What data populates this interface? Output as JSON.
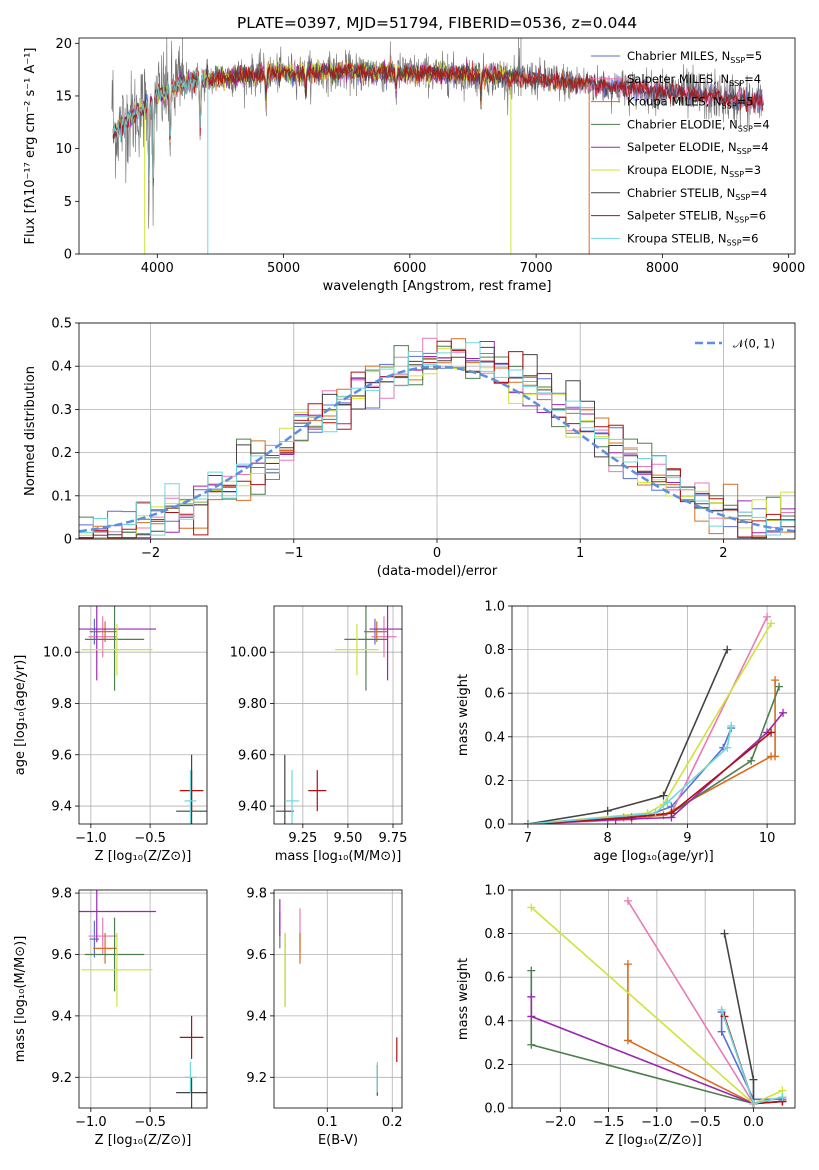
{
  "title": "PLATE=0397, MJD=51794, FIBERID=0536, z=0.044",
  "colors": {
    "Chabrier MILES": "#5a6fd6",
    "Salpeter MILES": "#e87ab8",
    "Kroupa MILES": "#d96c1f",
    "Chabrier ELODIE": "#4e7f4e",
    "Salpeter ELODIE": "#9b27b0",
    "Kroupa ELODIE": "#cfe33a",
    "Chabrier STELIB": "#444444",
    "Salpeter STELIB": "#b01010",
    "Kroupa STELIB": "#6ed7dc",
    "data": "#707070",
    "normal": "#5b8fe0"
  },
  "legend1": [
    {
      "key": "Chabrier MILES",
      "label": "Chabrier MILES, N",
      "sub": "SSP",
      "tail": "=5"
    },
    {
      "key": "Salpeter MILES",
      "label": "Salpeter MILES, N",
      "sub": "SSP",
      "tail": "=4"
    },
    {
      "key": "Kroupa MILES",
      "label": "Kroupa MILES, N",
      "sub": "SSP",
      "tail": "=5"
    },
    {
      "key": "Chabrier ELODIE",
      "label": "Chabrier ELODIE, N",
      "sub": "SSP",
      "tail": "=4"
    },
    {
      "key": "Salpeter ELODIE",
      "label": "Salpeter ELODIE, N",
      "sub": "SSP",
      "tail": "=4"
    },
    {
      "key": "Kroupa ELODIE",
      "label": "Kroupa ELODIE, N",
      "sub": "SSP",
      "tail": "=3"
    },
    {
      "key": "Chabrier STELIB",
      "label": "Chabrier STELIB, N",
      "sub": "SSP",
      "tail": "=4"
    },
    {
      "key": "Salpeter STELIB",
      "label": "Salpeter STELIB, N",
      "sub": "SSP",
      "tail": "=6"
    },
    {
      "key": "Kroupa STELIB",
      "label": "Kroupa STELIB, N",
      "sub": "SSP",
      "tail": "=6"
    }
  ],
  "legend2": {
    "label": "𝒩(0, 1)"
  },
  "chart_data": [
    {
      "id": "spectrum",
      "type": "line",
      "xlabel": "wavelength [Angstrom, rest frame]",
      "ylabel": "Flux [fλ10⁻¹⁷ erg cm⁻² s⁻¹ A⁻¹]",
      "xlim": [
        3380,
        9050
      ],
      "ylim": [
        0,
        20.5
      ],
      "xticks": [
        4000,
        5000,
        6000,
        7000,
        8000,
        9000
      ],
      "yticks": [
        0,
        5,
        10,
        15,
        20
      ],
      "continuum": {
        "x": [
          3650,
          3800,
          3900,
          4000,
          4200,
          4500,
          5000,
          5500,
          6000,
          6500,
          7000,
          7500,
          8000,
          8500,
          8800
        ],
        "y": [
          11.5,
          13.0,
          14.0,
          15.0,
          16.2,
          16.8,
          17.2,
          17.3,
          17.2,
          17.0,
          16.6,
          16.0,
          15.4,
          14.8,
          14.4
        ]
      },
      "absorption_features": [
        {
          "x": 3933,
          "y": 6.0
        },
        {
          "x": 3968,
          "y": 4.5
        },
        {
          "x": 4102,
          "y": 9.5
        },
        {
          "x": 4340,
          "y": 11.0
        },
        {
          "x": 4861,
          "y": 14.0
        },
        {
          "x": 5175,
          "y": 14.8
        },
        {
          "x": 5890,
          "y": 15.0
        },
        {
          "x": 6563,
          "y": 14.5
        }
      ],
      "model_drops": [
        {
          "series": "Kroupa ELODIE",
          "x": 3900
        },
        {
          "series": "Kroupa STELIB",
          "x": 4400
        },
        {
          "series": "Kroupa ELODIE",
          "x": 6800
        },
        {
          "series": "Kroupa MILES",
          "x": 7420
        }
      ],
      "model_ends": {
        "Chabrier MILES": 8800,
        "Salpeter MILES": 8800,
        "Chabrier ELODIE": 6800,
        "Salpeter ELODIE": 6800,
        "Chabrier STELIB": 8800,
        "Salpeter STELIB": 8800
      }
    },
    {
      "id": "residuals",
      "type": "histogram",
      "xlabel": "(data-model)/error",
      "ylabel": "Normed distribution",
      "xlim": [
        -2.5,
        2.5
      ],
      "ylim": [
        0,
        0.5
      ],
      "xticks": [
        -2,
        -1,
        0,
        1,
        2
      ],
      "yticks": [
        0.0,
        0.1,
        0.2,
        0.3,
        0.4,
        0.5
      ],
      "bin_width": 0.1,
      "normal": {
        "mu": 0,
        "sigma": 1
      }
    },
    {
      "id": "Z_age",
      "type": "scatter",
      "xlabel": "Z [log₁₀(Z/Z⊙)]",
      "ylabel": "age  [log₁₀(age/yr)]",
      "xlim": [
        -1.1,
        -0.02
      ],
      "ylim": [
        9.33,
        10.18
      ],
      "xticks": [
        -1.0,
        -0.5
      ],
      "yticks": [
        9.4,
        9.6,
        9.8,
        10.0
      ],
      "points": [
        {
          "s": "Chabrier MILES",
          "x": -0.97,
          "y": 10.08,
          "xe": 0.04,
          "ye": 0.05
        },
        {
          "s": "Salpeter MILES",
          "x": -0.9,
          "y": 10.06,
          "xe": 0.12,
          "ye": 0.08
        },
        {
          "s": "Kroupa MILES",
          "x": -0.88,
          "y": 10.08,
          "xe": 0.1,
          "ye": 0.04
        },
        {
          "s": "Chabrier ELODIE",
          "x": -0.8,
          "y": 10.05,
          "xe": 0.25,
          "ye": 0.2
        },
        {
          "s": "Salpeter ELODIE",
          "x": -0.95,
          "y": 10.09,
          "xe": 0.5,
          "ye": 0.2
        },
        {
          "s": "Kroupa ELODIE",
          "x": -0.78,
          "y": 10.01,
          "xe": 0.3,
          "ye": 0.1
        },
        {
          "s": "Chabrier STELIB",
          "x": -0.15,
          "y": 9.38,
          "xe": 0.13,
          "ye": 0.22
        },
        {
          "s": "Salpeter STELIB",
          "x": -0.15,
          "y": 9.46,
          "xe": 0.1,
          "ye": 0.08
        },
        {
          "s": "Kroupa STELIB",
          "x": -0.16,
          "y": 9.42,
          "xe": 0.05,
          "ye": 0.12
        }
      ]
    },
    {
      "id": "mass_age",
      "type": "scatter",
      "xlabel": "mass [log₁₀(M/M⊙)]",
      "ylabel": "",
      "xlim": [
        9.09,
        9.8
      ],
      "ylim": [
        9.33,
        10.18
      ],
      "xticks": [
        9.25,
        9.5,
        9.75
      ],
      "yticks": [
        9.4,
        9.6,
        9.8,
        10.0
      ],
      "points": [
        {
          "s": "Chabrier MILES",
          "x": 9.65,
          "y": 10.08,
          "xe": 0.06,
          "ye": 0.05
        },
        {
          "s": "Salpeter MILES",
          "x": 9.7,
          "y": 10.06,
          "xe": 0.07,
          "ye": 0.08
        },
        {
          "s": "Kroupa MILES",
          "x": 9.66,
          "y": 10.08,
          "xe": 0.06,
          "ye": 0.04
        },
        {
          "s": "Chabrier ELODIE",
          "x": 9.6,
          "y": 10.05,
          "xe": 0.12,
          "ye": 0.2
        },
        {
          "s": "Salpeter ELODIE",
          "x": 9.72,
          "y": 10.09,
          "xe": 0.1,
          "ye": 0.2
        },
        {
          "s": "Kroupa ELODIE",
          "x": 9.55,
          "y": 10.01,
          "xe": 0.12,
          "ye": 0.1
        },
        {
          "s": "Chabrier STELIB",
          "x": 9.15,
          "y": 9.38,
          "xe": 0.05,
          "ye": 0.22
        },
        {
          "s": "Salpeter STELIB",
          "x": 9.33,
          "y": 9.46,
          "xe": 0.05,
          "ye": 0.08
        },
        {
          "s": "Kroupa STELIB",
          "x": 9.19,
          "y": 9.42,
          "xe": 0.04,
          "ye": 0.12
        }
      ]
    },
    {
      "id": "age_weight",
      "type": "line",
      "xlabel": "age  [log₁₀(age/yr)]",
      "ylabel": "mass weight",
      "xlim": [
        6.8,
        10.35
      ],
      "ylim": [
        0,
        1.0
      ],
      "xticks": [
        7,
        8,
        9,
        10
      ],
      "yticks": [
        0.0,
        0.2,
        0.4,
        0.6,
        0.8,
        1.0
      ],
      "series": [
        {
          "s": "Chabrier MILES",
          "x": [
            7.0,
            8.5,
            8.8,
            9.45,
            9.55
          ],
          "y": [
            0.0,
            0.04,
            0.08,
            0.35,
            0.44
          ]
        },
        {
          "s": "Salpeter MILES",
          "x": [
            7.0,
            8.3,
            8.8,
            10.0
          ],
          "y": [
            0.0,
            0.02,
            0.05,
            0.95
          ]
        },
        {
          "s": "Kroupa MILES",
          "x": [
            7.0,
            8.2,
            8.7,
            10.05,
            10.1,
            10.1
          ],
          "y": [
            0.0,
            0.03,
            0.04,
            0.31,
            0.31,
            0.66
          ]
        },
        {
          "s": "Chabrier ELODIE",
          "x": [
            7.0,
            8.0,
            8.8,
            9.8,
            10.15
          ],
          "y": [
            0.0,
            0.02,
            0.05,
            0.29,
            0.63
          ]
        },
        {
          "s": "Salpeter ELODIE",
          "x": [
            7.0,
            8.1,
            8.8,
            10.0,
            10.2
          ],
          "y": [
            0.0,
            0.02,
            0.03,
            0.42,
            0.51
          ]
        },
        {
          "s": "Kroupa ELODIE",
          "x": [
            7.0,
            8.5,
            8.7,
            10.05
          ],
          "y": [
            0.0,
            0.05,
            0.09,
            0.92
          ]
        },
        {
          "s": "Chabrier STELIB",
          "x": [
            7.0,
            8.0,
            8.7,
            9.5
          ],
          "y": [
            0.0,
            0.06,
            0.13,
            0.8
          ]
        },
        {
          "s": "Salpeter STELIB",
          "x": [
            7.0,
            8.3,
            8.8,
            10.05
          ],
          "y": [
            0.0,
            0.03,
            0.05,
            0.42
          ]
        },
        {
          "s": "Kroupa STELIB",
          "x": [
            7.0,
            8.6,
            8.75,
            9.5,
            9.55
          ],
          "y": [
            0.0,
            0.05,
            0.1,
            0.35,
            0.45
          ]
        }
      ]
    },
    {
      "id": "Z_mass",
      "type": "scatter",
      "xlabel": "Z [log₁₀(Z/Z⊙)]",
      "ylabel": "mass [log₁₀(M/M⊙)]",
      "xlim": [
        -1.1,
        -0.02
      ],
      "ylim": [
        9.1,
        9.81
      ],
      "xticks": [
        -1.0,
        -0.5
      ],
      "yticks": [
        9.2,
        9.4,
        9.6,
        9.8
      ],
      "points": [
        {
          "s": "Chabrier MILES",
          "x": -0.97,
          "y": 9.65,
          "xe": 0.04,
          "ye": 0.06
        },
        {
          "s": "Salpeter MILES",
          "x": -0.9,
          "y": 9.66,
          "xe": 0.12,
          "ye": 0.06
        },
        {
          "s": "Kroupa MILES",
          "x": -0.88,
          "y": 9.62,
          "xe": 0.1,
          "ye": 0.05
        },
        {
          "s": "Chabrier ELODIE",
          "x": -0.8,
          "y": 9.6,
          "xe": 0.25,
          "ye": 0.12
        },
        {
          "s": "Salpeter ELODIE",
          "x": -0.95,
          "y": 9.74,
          "xe": 0.5,
          "ye": 0.1
        },
        {
          "s": "Kroupa ELODIE",
          "x": -0.78,
          "y": 9.55,
          "xe": 0.3,
          "ye": 0.12
        },
        {
          "s": "Chabrier STELIB",
          "x": -0.15,
          "y": 9.15,
          "xe": 0.13,
          "ye": 0.05
        },
        {
          "s": "Salpeter STELIB",
          "x": -0.15,
          "y": 9.33,
          "xe": 0.1,
          "ye": 0.07
        },
        {
          "s": "Kroupa STELIB",
          "x": -0.16,
          "y": 9.2,
          "xe": 0.05,
          "ye": 0.05
        }
      ]
    },
    {
      "id": "ebv_mass",
      "type": "scatter",
      "xlabel": "E(B-V)",
      "ylabel": "",
      "xlim": [
        0.018,
        0.215
      ],
      "ylim": [
        9.1,
        9.81
      ],
      "xticks": [
        0.1,
        0.2
      ],
      "yticks": [
        9.2,
        9.4,
        9.6,
        9.8
      ],
      "points": [
        {
          "s": "Chabrier MILES",
          "x": 0.027,
          "y": 9.68,
          "xe": 0.0,
          "ye": 0.06
        },
        {
          "s": "Salpeter MILES",
          "x": 0.058,
          "y": 9.68,
          "xe": 0.0,
          "ye": 0.07
        },
        {
          "s": "Kroupa MILES",
          "x": 0.058,
          "y": 9.62,
          "xe": 0.0,
          "ye": 0.05
        },
        {
          "s": "Chabrier ELODIE",
          "x": 0.035,
          "y": 9.55,
          "xe": 0.0,
          "ye": 0.12
        },
        {
          "s": "Salpeter ELODIE",
          "x": 0.027,
          "y": 9.72,
          "xe": 0.0,
          "ye": 0.06
        },
        {
          "s": "Kroupa ELODIE",
          "x": 0.035,
          "y": 9.55,
          "xe": 0.0,
          "ye": 0.12
        },
        {
          "s": "Chabrier STELIB",
          "x": 0.177,
          "y": 9.19,
          "xe": 0.0,
          "ye": 0.05
        },
        {
          "s": "Salpeter STELIB",
          "x": 0.207,
          "y": 9.29,
          "xe": 0.0,
          "ye": 0.04
        },
        {
          "s": "Kroupa STELIB",
          "x": 0.177,
          "y": 9.2,
          "xe": 0.0,
          "ye": 0.05
        }
      ]
    },
    {
      "id": "Z_weight",
      "type": "line",
      "xlabel": "Z [log₁₀(Z/Z⊙)]",
      "ylabel": "mass weight",
      "xlim": [
        -2.5,
        0.43
      ],
      "ylim": [
        0,
        1.0
      ],
      "xticks": [
        -2.0,
        -1.5,
        -1.0,
        -0.5,
        0.0
      ],
      "yticks": [
        0.0,
        0.2,
        0.4,
        0.6,
        0.8,
        1.0
      ],
      "series": [
        {
          "s": "Chabrier MILES",
          "x": [
            -0.33,
            -0.33,
            0.0,
            0.3
          ],
          "y": [
            0.44,
            0.35,
            0.04,
            0.04
          ]
        },
        {
          "s": "Salpeter MILES",
          "x": [
            -1.3,
            0.0,
            0.3
          ],
          "y": [
            0.95,
            0.02,
            0.03
          ]
        },
        {
          "s": "Kroupa MILES",
          "x": [
            -1.3,
            -1.3,
            0.0,
            0.3
          ],
          "y": [
            0.66,
            0.31,
            0.02,
            0.03
          ]
        },
        {
          "s": "Chabrier ELODIE",
          "x": [
            -2.3,
            -2.3,
            0.0,
            0.3
          ],
          "y": [
            0.63,
            0.29,
            0.02,
            0.05
          ]
        },
        {
          "s": "Salpeter ELODIE",
          "x": [
            -2.3,
            -2.3,
            0.0,
            0.3
          ],
          "y": [
            0.51,
            0.42,
            0.02,
            0.03
          ]
        },
        {
          "s": "Kroupa ELODIE",
          "x": [
            -2.3,
            0.0,
            0.3
          ],
          "y": [
            0.92,
            0.02,
            0.08
          ]
        },
        {
          "s": "Chabrier STELIB",
          "x": [
            -0.3,
            0.0,
            0.0
          ],
          "y": [
            0.8,
            0.13,
            0.02
          ]
        },
        {
          "s": "Salpeter STELIB",
          "x": [
            -0.3,
            0.0,
            0.3
          ],
          "y": [
            0.42,
            0.02,
            0.03
          ]
        },
        {
          "s": "Kroupa STELIB",
          "x": [
            -0.33,
            0.0,
            0.3
          ],
          "y": [
            0.45,
            0.02,
            0.05
          ]
        }
      ]
    }
  ]
}
